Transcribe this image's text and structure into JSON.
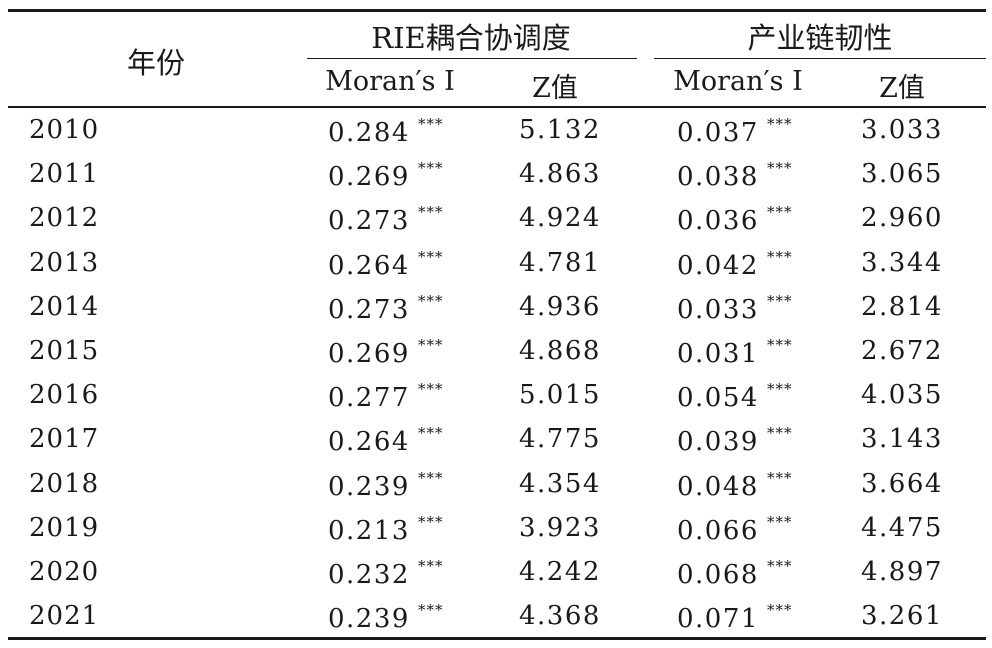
{
  "table": {
    "header": {
      "year_label": "年份",
      "group1": "RIE耦合协调度",
      "group2": "产业链韧性",
      "sub_moran": "Moran′s I",
      "sub_z": "Z值"
    },
    "significance_mark": "***",
    "rows": [
      {
        "year": "2010",
        "rie_moran": "0.284",
        "rie_z": "5.132",
        "res_moran": "0.037",
        "res_z": "3.033"
      },
      {
        "year": "2011",
        "rie_moran": "0.269",
        "rie_z": "4.863",
        "res_moran": "0.038",
        "res_z": "3.065"
      },
      {
        "year": "2012",
        "rie_moran": "0.273",
        "rie_z": "4.924",
        "res_moran": "0.036",
        "res_z": "2.960"
      },
      {
        "year": "2013",
        "rie_moran": "0.264",
        "rie_z": "4.781",
        "res_moran": "0.042",
        "res_z": "3.344"
      },
      {
        "year": "2014",
        "rie_moran": "0.273",
        "rie_z": "4.936",
        "res_moran": "0.033",
        "res_z": "2.814"
      },
      {
        "year": "2015",
        "rie_moran": "0.269",
        "rie_z": "4.868",
        "res_moran": "0.031",
        "res_z": "2.672"
      },
      {
        "year": "2016",
        "rie_moran": "0.277",
        "rie_z": "5.015",
        "res_moran": "0.054",
        "res_z": "4.035"
      },
      {
        "year": "2017",
        "rie_moran": "0.264",
        "rie_z": "4.775",
        "res_moran": "0.039",
        "res_z": "3.143"
      },
      {
        "year": "2018",
        "rie_moran": "0.239",
        "rie_z": "4.354",
        "res_moran": "0.048",
        "res_z": "3.664"
      },
      {
        "year": "2019",
        "rie_moran": "0.213",
        "rie_z": "3.923",
        "res_moran": "0.066",
        "res_z": "4.475"
      },
      {
        "year": "2020",
        "rie_moran": "0.232",
        "rie_z": "4.242",
        "res_moran": "0.068",
        "res_z": "4.897"
      },
      {
        "year": "2021",
        "rie_moran": "0.239",
        "rie_z": "4.368",
        "res_moran": "0.071",
        "res_z": "3.261"
      }
    ]
  }
}
